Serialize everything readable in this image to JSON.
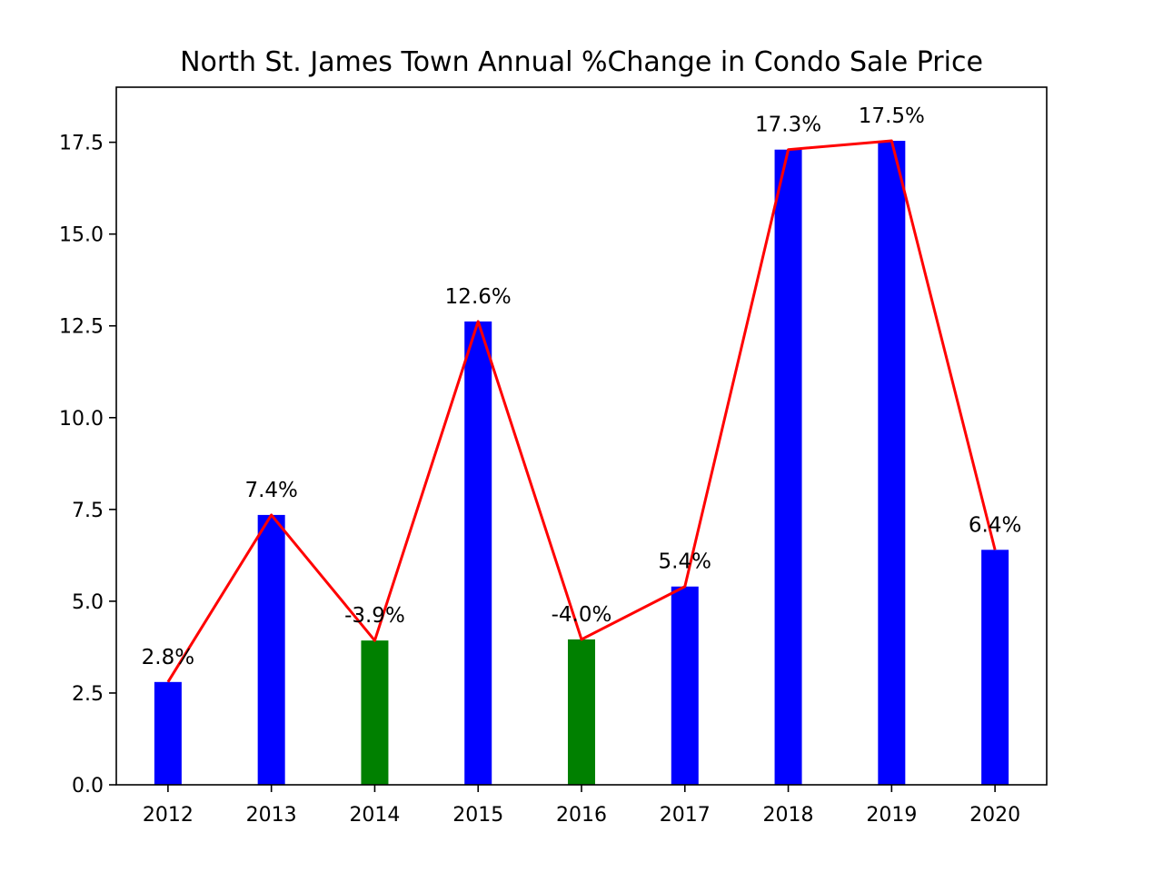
{
  "chart_data": {
    "type": "bar",
    "title": "North St. James Town Annual %Change in Condo Sale Price",
    "xlabel": "",
    "ylabel": "",
    "categories": [
      "2012",
      "2013",
      "2014",
      "2015",
      "2016",
      "2017",
      "2018",
      "2019",
      "2020"
    ],
    "values": [
      2.8,
      7.35,
      3.93,
      12.62,
      3.96,
      5.4,
      17.3,
      17.54,
      6.4
    ],
    "signed_change_percent": [
      2.8,
      7.4,
      -3.9,
      12.6,
      -4.0,
      5.4,
      17.3,
      17.5,
      6.4
    ],
    "value_labels": [
      "2.8%",
      "7.4%",
      "-3.9%",
      "12.6%",
      "-4.0%",
      "5.4%",
      "17.3%",
      "17.5%",
      "6.4%"
    ],
    "bar_colors": [
      "#0000ff",
      "#0000ff",
      "#008000",
      "#0000ff",
      "#008000",
      "#0000ff",
      "#0000ff",
      "#0000ff",
      "#0000ff"
    ],
    "line_color": "#ff0000",
    "positive_color": "#0000ff",
    "negative_color": "#008000",
    "overlay_line": "values",
    "ylim": [
      0,
      19
    ],
    "yticks": [
      0.0,
      2.5,
      5.0,
      7.5,
      10.0,
      12.5,
      15.0,
      17.5
    ],
    "ytick_labels": [
      "0.0",
      "2.5",
      "5.0",
      "7.5",
      "10.0",
      "12.5",
      "15.0",
      "17.5"
    ],
    "grid": false,
    "legend": "none"
  }
}
